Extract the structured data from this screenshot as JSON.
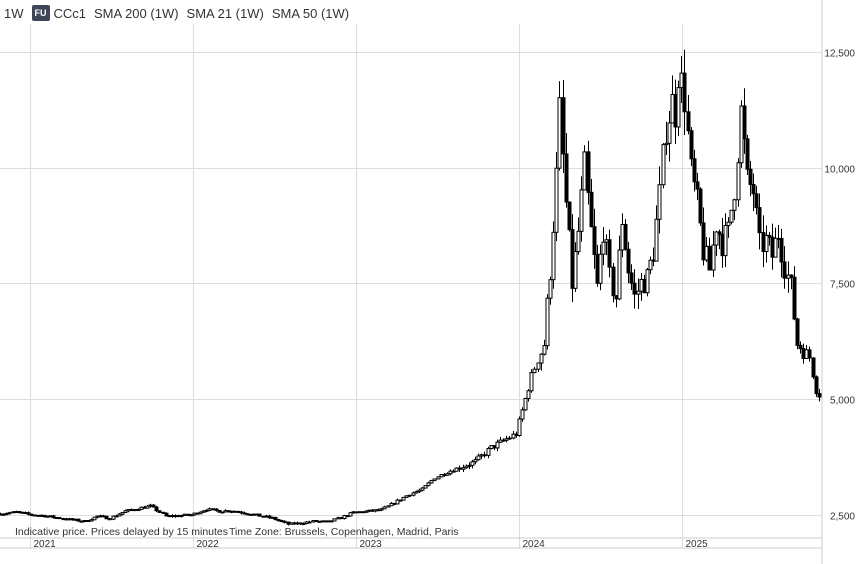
{
  "header": {
    "interval": "1W",
    "badge": "FU",
    "symbol": "CCc1",
    "indicators": [
      "SMA 200 (1W)",
      "SMA 21 (1W)",
      "SMA 50 (1W)"
    ]
  },
  "footer": {
    "delay_note": "Indicative price. Prices delayed by 15 minutes",
    "timezone": "Time Zone: Brussels, Copenhagen, Madrid, Paris"
  },
  "colors": {
    "candle": "#000000",
    "grid": "#dddddd",
    "text": "#333333",
    "badge": "#3d4758"
  },
  "chart_data": {
    "type": "candlestick",
    "interval": "weekly",
    "x_tick_labels": [
      "2021",
      "2022",
      "2023",
      "2024",
      "2025"
    ],
    "x_ticks": [
      "2021-01-01",
      "2022-01-01",
      "2023-01-01",
      "2024-01-01",
      "2025-01-01"
    ],
    "y_tick_labels": [
      "2,500",
      "5,000",
      "7,500",
      "10,000",
      "12,500"
    ],
    "y_ticks": [
      2500,
      5000,
      7500,
      10000,
      12500
    ],
    "ylim": [
      2000,
      13100
    ],
    "xlim": [
      "2020-10-26",
      "2025-11-10"
    ],
    "grid": true,
    "y_axis_position": "right",
    "series": [
      {
        "x": [
          "2020-10-26",
          "2020-11-30",
          "2020-12-28",
          "2021-02-01",
          "2021-03-01",
          "2021-03-29",
          "2021-05-03",
          "2021-05-31",
          "2021-06-28",
          "2021-08-02",
          "2021-08-30",
          "2021-09-27",
          "2021-11-01",
          "2021-11-29",
          "2021-12-27",
          "2022-01-31",
          "2022-02-28",
          "2022-03-28",
          "2022-05-02",
          "2022-05-30",
          "2022-06-27",
          "2022-08-01",
          "2022-08-29",
          "2022-09-26",
          "2022-10-31",
          "2022-11-28",
          "2022-12-26",
          "2023-01-30",
          "2023-02-27",
          "2023-03-27",
          "2023-05-01",
          "2023-05-29",
          "2023-06-26",
          "2023-07-31",
          "2023-08-28",
          "2023-09-25",
          "2023-10-30",
          "2023-11-27",
          "2023-12-25",
          "2024-01-29",
          "2024-02-26",
          "2024-03-11",
          "2024-03-25",
          "2024-04-01",
          "2024-04-15",
          "2024-04-29",
          "2024-05-13",
          "2024-05-27",
          "2024-06-10",
          "2024-06-24",
          "2024-07-08",
          "2024-07-22",
          "2024-08-05",
          "2024-08-19",
          "2024-09-02",
          "2024-09-16",
          "2024-09-30",
          "2024-10-14",
          "2024-10-28",
          "2024-11-11",
          "2024-11-25",
          "2024-12-09",
          "2024-12-16",
          "2024-12-23",
          "2025-01-06",
          "2025-01-20",
          "2025-02-03",
          "2025-02-17",
          "2025-03-03",
          "2025-03-17",
          "2025-03-31",
          "2025-04-14",
          "2025-04-28",
          "2025-05-12",
          "2025-05-26",
          "2025-06-09",
          "2025-06-23",
          "2025-07-07",
          "2025-07-21",
          "2025-08-04",
          "2025-08-18",
          "2025-09-01",
          "2025-09-15",
          "2025-09-29",
          "2025-10-13",
          "2025-10-27",
          "2025-11-03"
        ],
        "close": [
          2520,
          2560,
          2510,
          2480,
          2440,
          2400,
          2360,
          2470,
          2430,
          2580,
          2640,
          2690,
          2470,
          2480,
          2500,
          2620,
          2580,
          2590,
          2530,
          2480,
          2430,
          2300,
          2320,
          2360,
          2350,
          2440,
          2550,
          2580,
          2610,
          2760,
          2950,
          3050,
          3300,
          3450,
          3550,
          3650,
          3950,
          4100,
          4250,
          5500,
          6200,
          7800,
          9800,
          11200,
          9200,
          7500,
          8600,
          10000,
          8600,
          7400,
          8700,
          7600,
          7200,
          8900,
          7800,
          7200,
          7500,
          7600,
          8200,
          9400,
          10900,
          11400,
          11200,
          12100,
          11500,
          9900,
          9200,
          8200,
          7800,
          8800,
          8400,
          8600,
          9600,
          11200,
          9700,
          9500,
          8300,
          8400,
          8100,
          8600,
          7900,
          7400,
          6200,
          6100,
          5900,
          5200,
          5100
        ]
      }
    ]
  }
}
